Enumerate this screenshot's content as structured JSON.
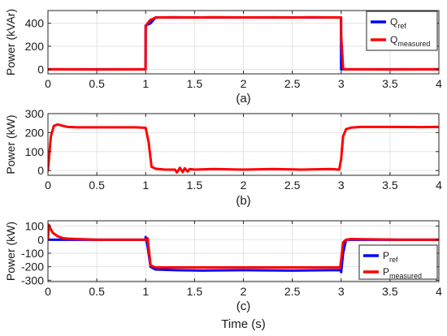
{
  "chart_data": [
    {
      "type": "line",
      "caption": "(a)",
      "xlabel": "",
      "ylabel": "Power (kVAr)",
      "xlim": [
        0,
        4
      ],
      "ylim": [
        -40,
        510
      ],
      "xticks": [
        0,
        0.5,
        1,
        1.5,
        2,
        2.5,
        3,
        3.5,
        4
      ],
      "xtick_labels": [
        "0",
        "0.5",
        "1",
        "1.5",
        "2",
        "2.5",
        "3",
        "3.5",
        "4"
      ],
      "yticks": [
        0,
        200,
        400
      ],
      "ytick_labels": [
        "0",
        "200",
        "400"
      ],
      "grid": true,
      "legend_position": "top-right",
      "series": [
        {
          "name_main": "Q",
          "name_sub": "ref",
          "color": "#0000ff",
          "x": [
            0,
            0.999,
            1.0,
            1.05,
            1.08,
            1.1,
            1.15,
            2.999,
            3.0,
            4
          ],
          "y": [
            0,
            0,
            380,
            400,
            430,
            450,
            450,
            450,
            0,
            0
          ]
        },
        {
          "name_main": "Q",
          "name_sub": "measured",
          "color": "#ff0000",
          "x": [
            0,
            0.5,
            0.999,
            1.0,
            1.02,
            1.05,
            1.08,
            1.1,
            1.15,
            1.3,
            1.5,
            1.7,
            2.0,
            2.3,
            2.5,
            2.7,
            2.9,
            2.999,
            3.0,
            3.02,
            3.03,
            3.5,
            4
          ],
          "y": [
            0,
            -2,
            0,
            370,
            400,
            430,
            440,
            448,
            450,
            452,
            449,
            452,
            450,
            451,
            449,
            452,
            450,
            450,
            300,
            10,
            0,
            -2,
            0
          ]
        }
      ]
    },
    {
      "type": "line",
      "caption": "(b)",
      "xlabel": "",
      "ylabel": "Power (kW)",
      "xlim": [
        0,
        4
      ],
      "ylim": [
        -25,
        300
      ],
      "xticks": [
        0,
        0.5,
        1,
        1.5,
        2,
        2.5,
        3,
        3.5,
        4
      ],
      "xtick_labels": [
        "0",
        "0.5",
        "1",
        "1.5",
        "2",
        "2.5",
        "3",
        "3.5",
        "4"
      ],
      "yticks": [
        0,
        100,
        200,
        300
      ],
      "ytick_labels": [
        "0",
        "100",
        "200",
        "300"
      ],
      "grid": true,
      "series": [
        {
          "color": "#ff0000",
          "x": [
            0,
            0.01,
            0.03,
            0.06,
            0.1,
            0.15,
            0.2,
            0.3,
            0.5,
            0.7,
            0.9,
            1.0,
            1.03,
            1.06,
            1.1,
            1.2,
            1.3,
            1.32,
            1.35,
            1.38,
            1.4,
            1.43,
            1.45,
            1.5,
            1.7,
            2.0,
            2.3,
            2.6,
            2.9,
            2.98,
            3.0,
            3.02,
            3.05,
            3.1,
            3.2,
            3.5,
            3.8,
            4.0
          ],
          "y": [
            0,
            60,
            180,
            235,
            243,
            236,
            230,
            228,
            228,
            228,
            228,
            225,
            150,
            20,
            10,
            5,
            5,
            -10,
            15,
            -8,
            12,
            -5,
            8,
            5,
            8,
            5,
            8,
            5,
            8,
            5,
            60,
            180,
            218,
            226,
            230,
            230,
            229,
            230
          ]
        }
      ]
    },
    {
      "type": "line",
      "caption": "(c)",
      "xlabel": "Time (s)",
      "ylabel": "Power (kW)",
      "xlim": [
        0,
        4
      ],
      "ylim": [
        -310,
        140
      ],
      "xticks": [
        0,
        0.5,
        1,
        1.5,
        2,
        2.5,
        3,
        3.5,
        4
      ],
      "xtick_labels": [
        "0",
        "0.5",
        "1",
        "1.5",
        "2",
        "2.5",
        "3",
        "3.5",
        "4"
      ],
      "yticks": [
        -300,
        -200,
        -100,
        0,
        100
      ],
      "ytick_labels": [
        "-300",
        "-200",
        "-100",
        "0",
        "100"
      ],
      "grid": true,
      "legend_position": "bottom-right",
      "series": [
        {
          "name_main": "P",
          "name_sub": "ref",
          "color": "#0000ff",
          "x": [
            0,
            0.999,
            1.0,
            1.02,
            1.05,
            1.1,
            1.3,
            1.6,
            2.0,
            2.5,
            2.9,
            2.999,
            3.0,
            3.02,
            3.05,
            3.1,
            4.0
          ],
          "y": [
            0,
            0,
            20,
            -50,
            -200,
            -220,
            -225,
            -228,
            -225,
            -228,
            -225,
            -225,
            -240,
            -100,
            0,
            0,
            0
          ]
        },
        {
          "name_main": "P",
          "name_sub": "measured",
          "color": "#ff0000",
          "x": [
            0,
            0.01,
            0.02,
            0.05,
            0.1,
            0.15,
            0.2,
            0.3,
            0.5,
            0.9,
            1.0,
            1.02,
            1.05,
            1.1,
            1.5,
            2.0,
            2.5,
            2.99,
            3.0,
            3.02,
            3.05,
            3.1,
            3.3,
            3.6,
            4.0
          ],
          "y": [
            0,
            110,
            90,
            50,
            25,
            12,
            8,
            5,
            0,
            0,
            0,
            10,
            -190,
            -205,
            -205,
            -205,
            -205,
            -205,
            -150,
            -20,
            0,
            5,
            3,
            0,
            0
          ]
        }
      ]
    }
  ]
}
